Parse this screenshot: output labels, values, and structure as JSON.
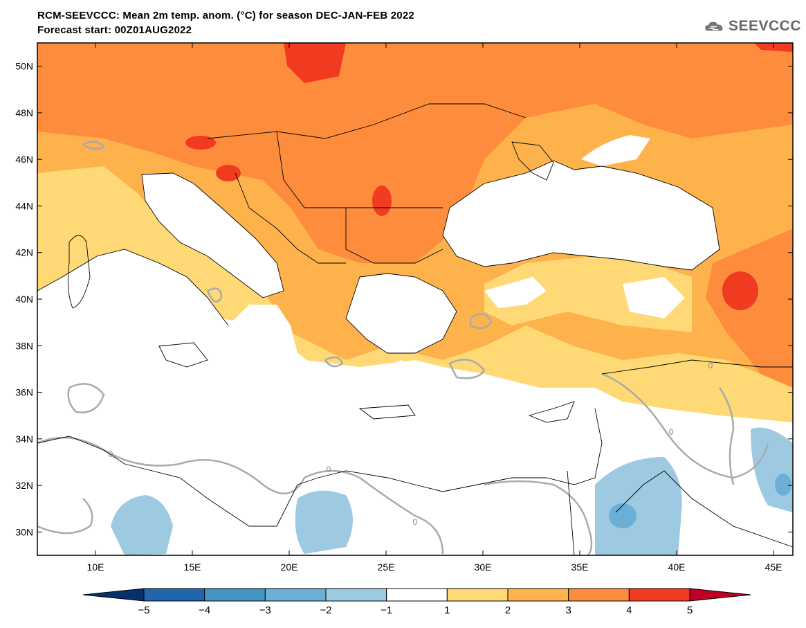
{
  "header": {
    "title_line1": "RCM-SEEVCCC: Mean 2m temp. anom. (°C) for season DEC-JAN-FEB 2022",
    "title_line2": "Forecast start: 00Z01AUG2022",
    "logo_text": "SEEVCCC"
  },
  "map": {
    "lon_range": [
      7,
      46
    ],
    "lat_range": [
      29,
      51
    ],
    "lat_ticks": [
      "50N",
      "48N",
      "46N",
      "44N",
      "42N",
      "40N",
      "38N",
      "36N",
      "34N",
      "32N",
      "30N"
    ],
    "lon_ticks": [
      "10E",
      "15E",
      "20E",
      "25E",
      "30E",
      "35E",
      "40E",
      "45E"
    ],
    "contour_label": "0"
  },
  "colorbar": {
    "labels": [
      "−5",
      "−4",
      "−3",
      "−2",
      "−1",
      "1",
      "2",
      "3",
      "4",
      "5"
    ],
    "colors": [
      "#08306b",
      "#2166ac",
      "#4393c3",
      "#6baed6",
      "#9ecae1",
      "#ffffff",
      "#fed976",
      "#feb24c",
      "#fd8d3c",
      "#f03b20",
      "#bd0026"
    ]
  }
}
